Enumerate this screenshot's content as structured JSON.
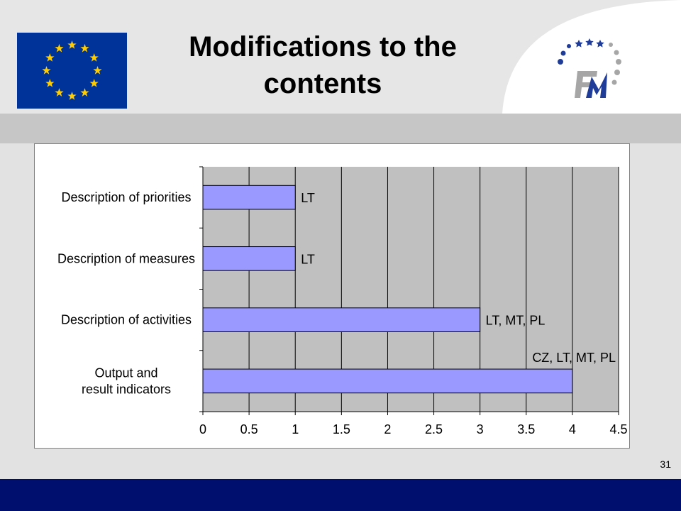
{
  "slide": {
    "title": "Modifications to the contents",
    "page_number": "31"
  },
  "colors": {
    "top_background": "#e6e6e6",
    "band": "#c6c6c6",
    "footer": "#000f6d",
    "plot_area": "#c0c0c0",
    "bar_fill": "#9999ff",
    "eu_blue": "#003399",
    "eu_star": "#ffcc00",
    "logo_blue": "#1f3c99",
    "logo_grey": "#a6a6a6"
  },
  "icons": {
    "eu_flag": "eu-flag-icon",
    "fm_logo": "fm-logo-icon"
  },
  "chart_data": {
    "type": "bar",
    "orientation": "horizontal",
    "title": "",
    "xlabel": "",
    "ylabel": "",
    "categories": [
      "Description of priorities",
      "Description of measures",
      "Description of activities",
      "Output and result indicators"
    ],
    "values": [
      1,
      1,
      3,
      4
    ],
    "data_labels": [
      "LT",
      "LT",
      "LT, MT, PL",
      "CZ, LT, MT, PL"
    ],
    "xlim": [
      0,
      4.5
    ],
    "x_ticks": [
      "0",
      "0.5",
      "1",
      "1.5",
      "2",
      "2.5",
      "3",
      "3.5",
      "4",
      "4.5"
    ],
    "grid": true,
    "legend": "none"
  }
}
